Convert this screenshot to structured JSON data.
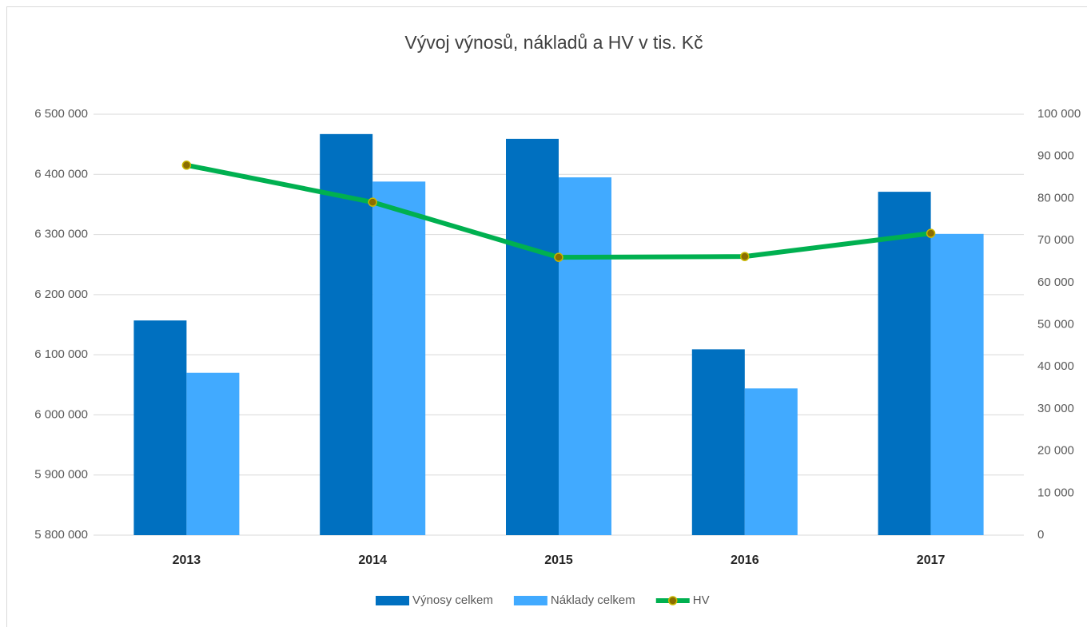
{
  "chart_data": {
    "type": "bar_line",
    "title": "Vývoj výnosů, nákladů a HV v tis. Kč",
    "categories": [
      "2013",
      "2014",
      "2015",
      "2016",
      "2017"
    ],
    "series": [
      {
        "name": "Výnosy celkem",
        "color": "#0070c0",
        "type": "bar",
        "values": [
          6157000,
          6467000,
          6459000,
          6109000,
          6371000
        ]
      },
      {
        "name": "Náklady celkem",
        "color": "#41aaff",
        "type": "bar",
        "values": [
          6070000,
          6388000,
          6395000,
          6044000,
          6301000
        ]
      },
      {
        "name": "HV",
        "color": "#00b050",
        "type": "line",
        "axis": "y2",
        "values": [
          87900,
          79100,
          66000,
          66200,
          71700
        ]
      }
    ],
    "ylim": [
      5800000,
      6500000
    ],
    "yticks": [
      {
        "value": 5800000,
        "label": "5 800 000"
      },
      {
        "value": 5900000,
        "label": "5 900 000"
      },
      {
        "value": 6000000,
        "label": "6 000 000"
      },
      {
        "value": 6100000,
        "label": "6 100 000"
      },
      {
        "value": 6200000,
        "label": "6 200 000"
      },
      {
        "value": 6300000,
        "label": "6 300 000"
      },
      {
        "value": 6400000,
        "label": "6 400 000"
      },
      {
        "value": 6500000,
        "label": "6 500 000"
      }
    ],
    "y2lim": [
      0,
      100000
    ],
    "y2ticks": [
      0,
      {
        "value": 10000,
        "label": "10 000"
      },
      {
        "value": 20000,
        "label": "20 000"
      },
      {
        "value": 30000,
        "label": "30 000"
      },
      {
        "value": 40000,
        "label": "40 000"
      },
      {
        "value": 50000,
        "label": "50 000"
      },
      {
        "value": 60000,
        "label": "60 000"
      },
      {
        "value": 70000,
        "label": "70 000"
      },
      {
        "value": 80000,
        "label": "80 000"
      },
      {
        "value": 90000,
        "label": "90 000"
      },
      {
        "value": 100000,
        "label": "100 000"
      }
    ],
    "grid": true,
    "legend": "bottom"
  }
}
